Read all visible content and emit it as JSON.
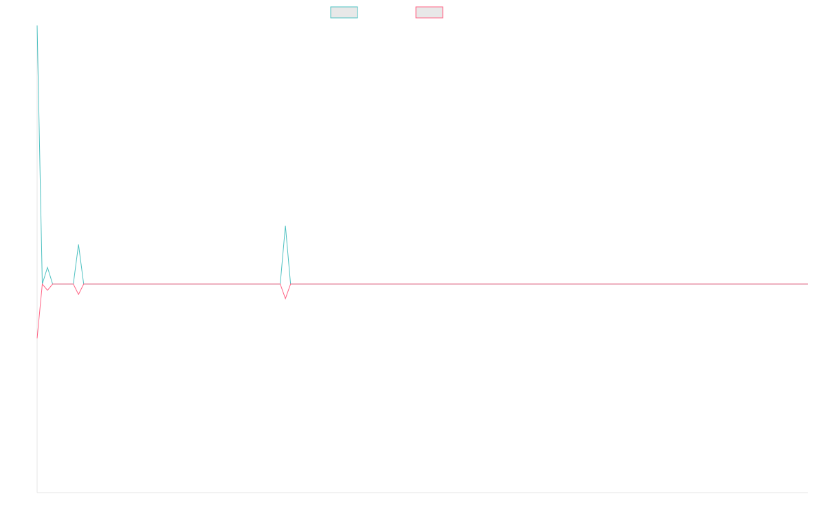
{
  "chart_data": {
    "type": "line",
    "title": "",
    "xlabel": "",
    "ylabel": "",
    "grid": false,
    "legend_position": "top-center",
    "ylim": [
      -100,
      124
    ],
    "x": [
      0,
      1,
      2,
      3,
      4,
      5,
      6,
      7,
      8,
      9,
      10,
      11,
      12,
      13,
      14,
      15,
      16,
      17,
      18,
      19,
      20,
      21,
      22,
      23,
      24,
      25,
      26,
      27,
      28,
      29,
      30,
      31,
      32,
      33,
      34,
      35,
      36,
      37,
      38,
      39,
      40,
      41,
      42,
      43,
      44,
      45,
      46,
      47,
      48,
      49,
      50,
      51,
      52,
      53,
      54,
      55,
      56,
      57,
      58,
      59,
      60,
      61,
      62,
      63,
      64,
      65,
      66,
      67,
      68,
      69,
      70,
      71,
      72,
      73,
      74,
      75,
      76,
      77,
      78,
      79,
      80,
      81,
      82,
      83,
      84,
      85,
      86,
      87,
      88,
      89,
      90,
      91,
      92,
      93,
      94,
      95,
      96,
      97,
      98,
      99,
      100,
      101,
      102,
      103,
      104,
      105,
      106,
      107,
      108,
      109,
      110,
      111,
      112,
      113,
      114,
      115,
      116,
      117,
      118,
      119,
      120,
      121,
      122,
      123,
      124,
      125,
      126,
      127,
      128,
      129,
      130,
      131,
      132,
      133,
      134,
      135,
      136,
      137,
      138,
      139,
      140,
      141,
      142,
      143,
      144,
      145,
      146,
      147,
      148,
      149
    ],
    "series": [
      {
        "color": "#4bc0c0",
        "values": [
          124,
          0,
          8,
          0,
          0,
          0,
          0,
          0,
          19,
          0,
          0,
          0,
          0,
          0,
          0,
          0,
          0,
          0,
          0,
          0,
          0,
          0,
          0,
          0,
          0,
          0,
          0,
          0,
          0,
          0,
          0,
          0,
          0,
          0,
          0,
          0,
          0,
          0,
          0,
          0,
          0,
          0,
          0,
          0,
          0,
          0,
          0,
          0,
          28,
          0,
          0,
          0,
          0,
          0,
          0,
          0,
          0,
          0,
          0,
          0,
          0,
          0,
          0,
          0,
          0,
          0,
          0,
          0,
          0,
          0,
          0,
          0,
          0,
          0,
          0,
          0,
          0,
          0,
          0,
          0,
          0,
          0,
          0,
          0,
          0,
          0,
          0,
          0,
          0,
          0,
          0,
          0,
          0,
          0,
          0,
          0,
          0,
          0,
          0,
          0,
          0,
          0,
          0,
          0,
          0,
          0,
          0,
          0,
          0,
          0,
          0,
          0,
          0,
          0,
          0,
          0,
          0,
          0,
          0,
          0,
          0,
          0,
          0,
          0,
          0,
          0,
          0,
          0,
          0,
          0,
          0,
          0,
          0,
          0,
          0,
          0,
          0,
          0,
          0,
          0,
          0,
          0,
          0,
          0,
          0,
          0,
          0,
          0,
          0,
          0
        ]
      },
      {
        "color": "#ff6384",
        "values": [
          -26,
          0,
          -3,
          0,
          0,
          0,
          0,
          0,
          -5,
          0,
          0,
          0,
          0,
          0,
          0,
          0,
          0,
          0,
          0,
          0,
          0,
          0,
          0,
          0,
          0,
          0,
          0,
          0,
          0,
          0,
          0,
          0,
          0,
          0,
          0,
          0,
          0,
          0,
          0,
          0,
          0,
          0,
          0,
          0,
          0,
          0,
          0,
          0,
          -7,
          0,
          0,
          0,
          0,
          0,
          0,
          0,
          0,
          0,
          0,
          0,
          0,
          0,
          0,
          0,
          0,
          0,
          0,
          0,
          0,
          0,
          0,
          0,
          0,
          0,
          0,
          0,
          0,
          0,
          0,
          0,
          0,
          0,
          0,
          0,
          0,
          0,
          0,
          0,
          0,
          0,
          0,
          0,
          0,
          0,
          0,
          0,
          0,
          0,
          0,
          0,
          0,
          0,
          0,
          0,
          0,
          0,
          0,
          0,
          0,
          0,
          0,
          0,
          0,
          0,
          0,
          0,
          0,
          0,
          0,
          0,
          0,
          0,
          0,
          0,
          0,
          0,
          0,
          0,
          0,
          0,
          0,
          0,
          0,
          0,
          0,
          0,
          0,
          0,
          0,
          0,
          0,
          0,
          0,
          0,
          0,
          0,
          0,
          0,
          0,
          0
        ]
      }
    ],
    "legend": [
      {
        "color": "#4bc0c0",
        "fill": "#e8e8e8"
      },
      {
        "color": "#ff6384",
        "fill": "#e8e8e8"
      }
    ]
  }
}
